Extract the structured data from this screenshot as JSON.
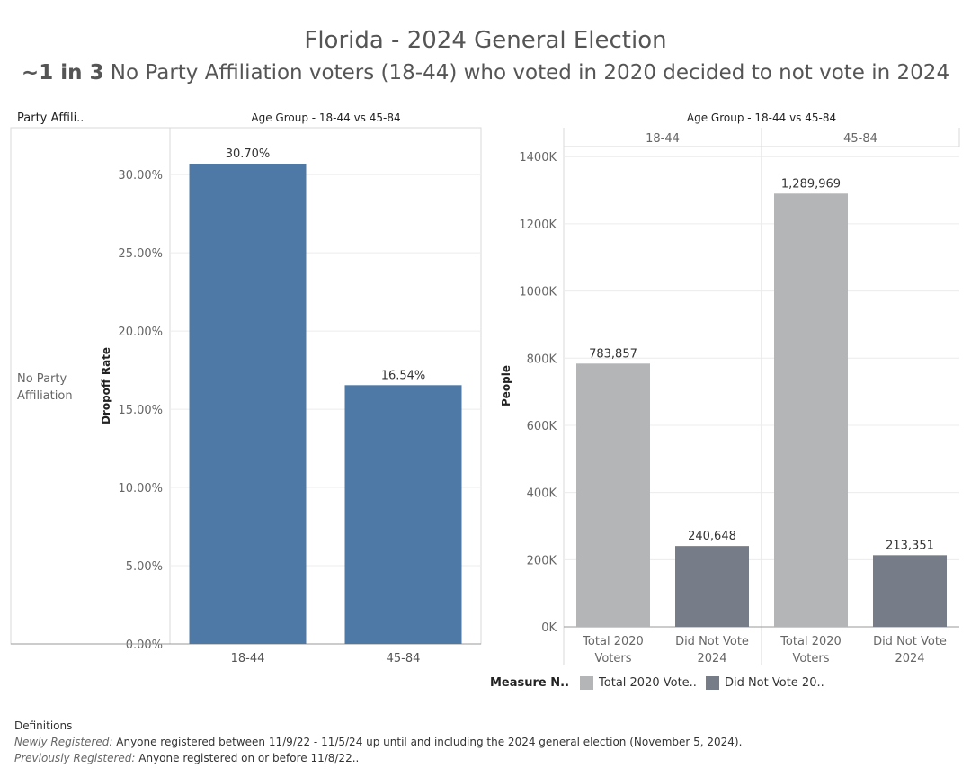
{
  "title": "Florida - 2024 General Election",
  "subtitle_bold": "~1 in 3",
  "subtitle_rest": "No Party Affiliation voters (18-44) who voted in 2020 decided to not vote in 2024",
  "left_panel": {
    "row_header": "Party Affili..",
    "col_header": "Age Group - 18-44 vs 45-84",
    "row_label": "No Party Affiliation"
  },
  "right_panel": {
    "col_header": "Age Group - 18-44 vs 45-84",
    "facets": [
      "18-44",
      "45-84"
    ]
  },
  "legend": {
    "title": "Measure N..",
    "items": [
      {
        "label": "Total 2020 Vote..",
        "color": "#b3b5b7"
      },
      {
        "label": "Did Not Vote 20..",
        "color": "#777c89"
      }
    ]
  },
  "definitions": {
    "heading": "Definitions",
    "items": [
      {
        "term": "Newly Registered:",
        "text": "Anyone registered between 11/9/22 - 11/5/24 up until and including the 2024 general election (November 5, 2024)."
      },
      {
        "term": "Previously Registered:",
        "text": "Anyone registered on or before 11/8/22.."
      }
    ]
  },
  "chart_data": [
    {
      "type": "bar",
      "categories": [
        "18-44",
        "45-84"
      ],
      "values": [
        30.7,
        16.54
      ],
      "data_labels": [
        "30.70%",
        "16.54%"
      ],
      "ylabel": "Dropoff Rate",
      "ylim": [
        0,
        33
      ],
      "yticks": [
        0,
        5,
        10,
        15,
        20,
        25,
        30
      ],
      "ytick_labels": [
        "0.00%",
        "5.00%",
        "10.00%",
        "15.00%",
        "20.00%",
        "25.00%",
        "30.00%"
      ],
      "color": "#4e79a7",
      "grid": true
    },
    {
      "type": "bar",
      "facets": [
        "18-44",
        "45-84"
      ],
      "categories": [
        "Total 2020\nVoters",
        "Did Not Vote\n2024"
      ],
      "series": [
        {
          "name": "Total 2020 Voters",
          "values": [
            783857,
            1289969
          ],
          "color": "#b3b5b7"
        },
        {
          "name": "Did Not Vote 2024",
          "values": [
            240648,
            213351
          ],
          "color": "#777c89"
        }
      ],
      "data_labels": [
        [
          "783,857",
          "240,648"
        ],
        [
          "1,289,969",
          "213,351"
        ]
      ],
      "ylabel": "People",
      "ylim": [
        0,
        1430000
      ],
      "yticks": [
        0,
        200000,
        400000,
        600000,
        800000,
        1000000,
        1200000,
        1400000
      ],
      "ytick_labels": [
        "0K",
        "200K",
        "400K",
        "600K",
        "800K",
        "1000K",
        "1200K",
        "1400K"
      ],
      "grid": true
    }
  ]
}
